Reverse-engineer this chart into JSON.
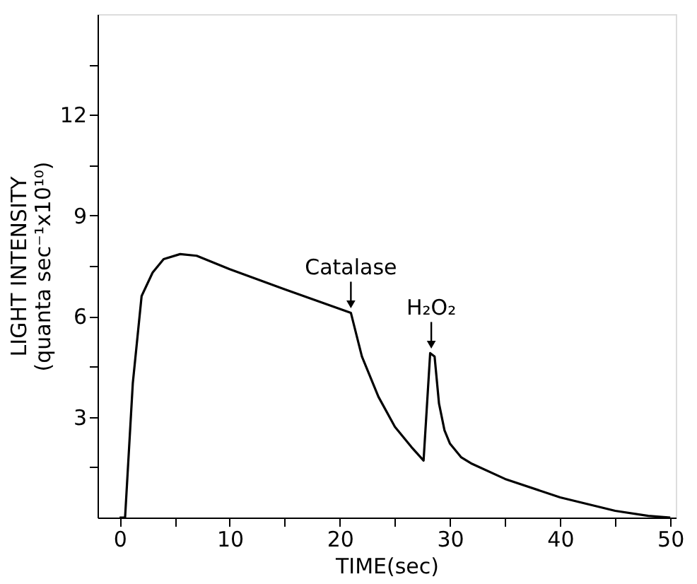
{
  "chart_data": {
    "type": "line",
    "xlabel": "TIME(sec)",
    "ylabel": "LIGHT INTENSITY\n(quanta sec⁻¹x10¹⁰)",
    "x": [
      0,
      0.5,
      1.2,
      2,
      3,
      4,
      5.5,
      7,
      10,
      15,
      21,
      22,
      23.5,
      25,
      26.5,
      27.6,
      28.2,
      28.6,
      29,
      29.5,
      30,
      31,
      32,
      35,
      40,
      45,
      48,
      50
    ],
    "series": [
      {
        "color": "#000000",
        "values": [
          0,
          0,
          4,
          6.6,
          7.3,
          7.7,
          7.85,
          7.8,
          7.4,
          6.8,
          6.1,
          4.8,
          3.6,
          2.7,
          2.1,
          1.7,
          4.9,
          4.8,
          3.4,
          2.6,
          2.2,
          1.8,
          1.6,
          1.15,
          0.6,
          0.2,
          0.05,
          0
        ]
      }
    ],
    "xlim": [
      -2,
      50.5
    ],
    "ylim": [
      0,
      15
    ],
    "xticks": [
      0,
      {
        "value": 5,
        "label": null
      },
      10,
      {
        "value": 15,
        "label": null
      },
      20,
      {
        "value": 25,
        "label": null
      },
      30,
      {
        "value": 35,
        "label": null
      },
      40,
      {
        "value": 45,
        "label": null
      },
      50
    ],
    "yticks": [
      {
        "value": 1.5,
        "label": null
      },
      3,
      {
        "value": 4.5,
        "label": null
      },
      6,
      {
        "value": 7.5,
        "label": null
      },
      9,
      {
        "value": 10.5,
        "label": null
      },
      12,
      {
        "value": 13.5,
        "label": null
      }
    ],
    "annotations": [
      {
        "text": "Catalase",
        "x": 21,
        "y": 6.1
      },
      {
        "text": "H₂O₂",
        "x": 28.3,
        "y": 4.9
      }
    ],
    "grid": false,
    "legend": false,
    "marker": "none",
    "line_style": "solid"
  }
}
